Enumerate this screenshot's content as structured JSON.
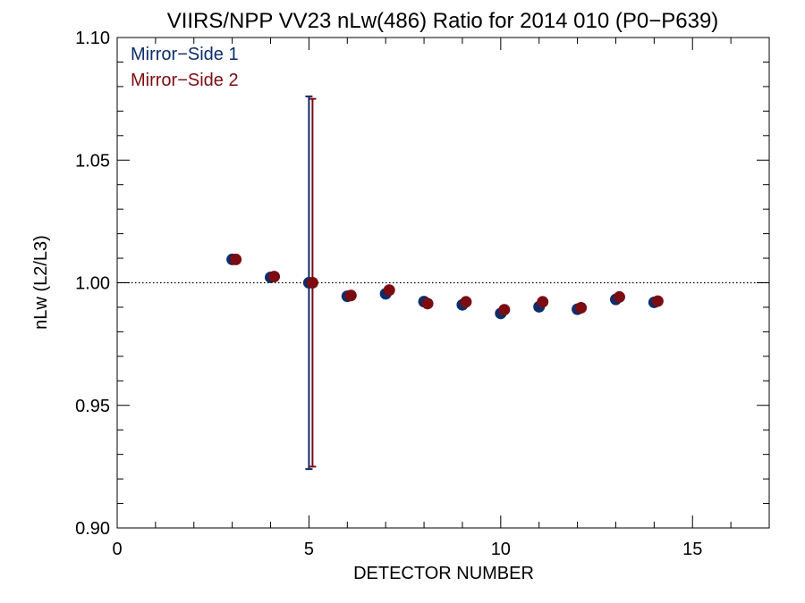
{
  "chart_data": {
    "type": "scatter",
    "title": "VIIRS/NPP VV23 nLw(486) Ratio for 2014 010 (P0−P639)",
    "xlabel": "DETECTOR NUMBER",
    "ylabel": "nLw (L2/L3)",
    "xlim": [
      0,
      17
    ],
    "ylim": [
      0.9,
      1.1
    ],
    "xticks": [
      0,
      5,
      10,
      15
    ],
    "xtick_labels": [
      "0",
      "5",
      "10",
      "15"
    ],
    "yticks": [
      0.9,
      0.95,
      1.0,
      1.05,
      1.1
    ],
    "ytick_labels": [
      "0.90",
      "0.95",
      "1.00",
      "1.05",
      "1.10"
    ],
    "reference_line": 1.0,
    "grid": false,
    "legend_position": "top-left",
    "series": [
      {
        "name": "Mirror−Side 1",
        "color": "#0c2d6b",
        "x": [
          3,
          4,
          5,
          6,
          7,
          8,
          9,
          10,
          11,
          12,
          13,
          14
        ],
        "y": [
          1.0095,
          1.0022,
          1.0,
          0.9945,
          0.9955,
          0.9923,
          0.991,
          0.9875,
          0.9902,
          0.9892,
          0.9932,
          0.992
        ],
        "errorbars": [
          null,
          null,
          [
            0.924,
            1.076
          ],
          null,
          null,
          null,
          null,
          null,
          null,
          null,
          null,
          null
        ]
      },
      {
        "name": "Mirror−Side 2",
        "color": "#7a0c12",
        "x": [
          3,
          4,
          5,
          6,
          7,
          8,
          9,
          10,
          11,
          12,
          13,
          14
        ],
        "y": [
          1.0095,
          1.0025,
          1.0,
          0.9948,
          0.997,
          0.9915,
          0.9922,
          0.989,
          0.9922,
          0.9898,
          0.9942,
          0.9925
        ],
        "errorbars": [
          null,
          null,
          [
            0.925,
            1.075
          ],
          null,
          null,
          null,
          null,
          null,
          null,
          null,
          null,
          null
        ]
      }
    ]
  }
}
